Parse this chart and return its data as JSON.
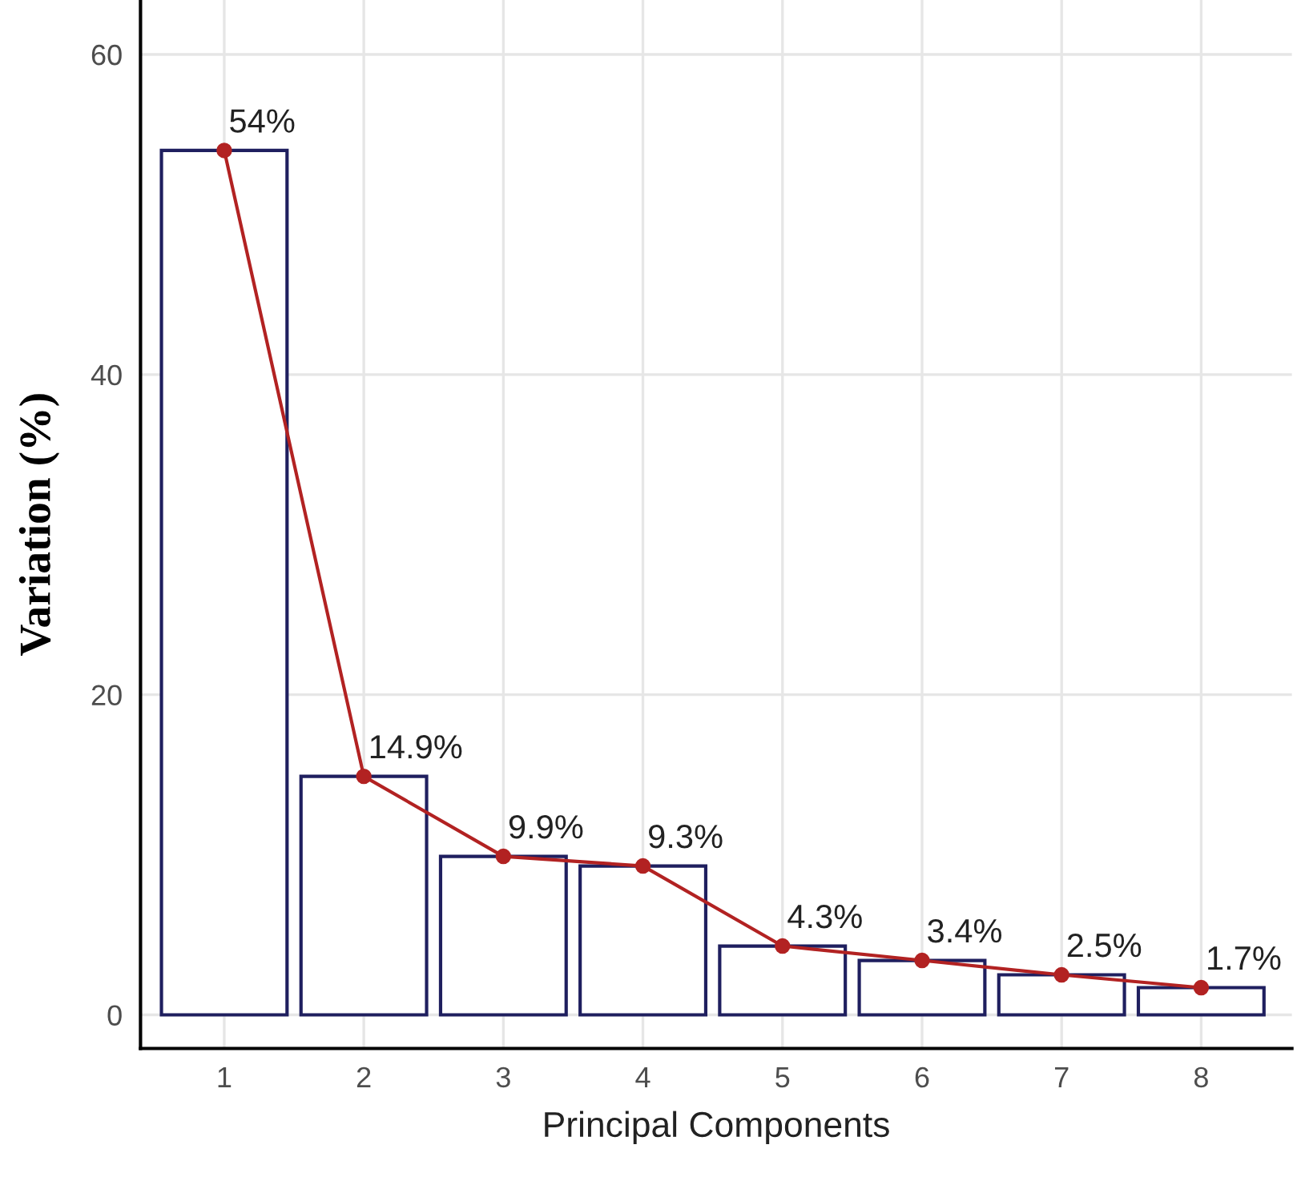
{
  "chart_data": {
    "type": "bar",
    "xlabel": "Principal Components",
    "ylabel": "Variation (%)",
    "categories": [
      "1",
      "2",
      "3",
      "4",
      "5",
      "6",
      "7",
      "8"
    ],
    "series": [
      {
        "color": "#ffffff",
        "values": [
          54,
          14.9,
          9.9,
          9.3,
          4.3,
          3.4,
          2.5,
          1.7
        ]
      },
      {
        "type": "line",
        "color": "#b22222",
        "marker": "circle",
        "values": [
          54,
          14.9,
          9.9,
          9.3,
          4.3,
          3.4,
          2.5,
          1.7
        ],
        "value_labels": [
          "54%",
          "14.9%",
          "9.9%",
          "9.3%",
          "4.3%",
          "3.4%",
          "2.5%",
          "1.7%"
        ]
      }
    ],
    "ylim": [
      -2.1,
      63.4
    ],
    "yticks": [
      0,
      20,
      40,
      60
    ],
    "grid": true
  }
}
